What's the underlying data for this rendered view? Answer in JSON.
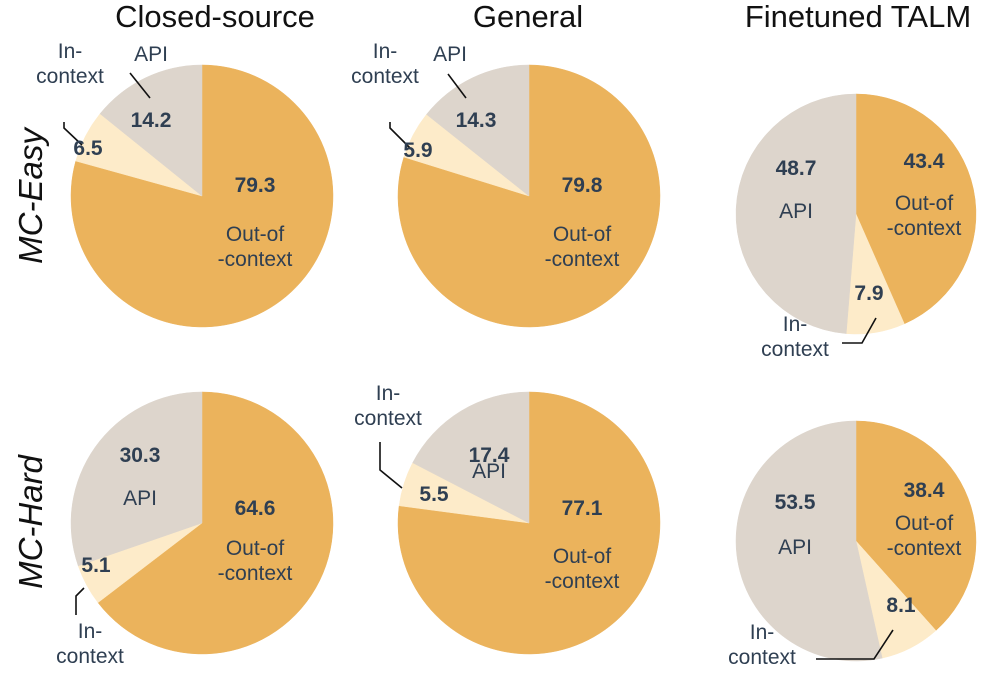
{
  "chart_data": {
    "type": "pie",
    "title": "",
    "column_titles": [
      "Closed-source",
      "General",
      "Finetuned TALM"
    ],
    "row_titles": [
      "MC-Easy",
      "MC-Hard"
    ],
    "categories": [
      "Out-of-context",
      "In-context",
      "API"
    ],
    "category_labels": {
      "out_of_context": [
        "Out-of",
        "-context"
      ],
      "in_context": [
        "In-",
        "context"
      ],
      "api": [
        "API"
      ]
    },
    "colors": {
      "out_of_context": "#ebb35c",
      "in_context": "#fdebc9",
      "api": "#ddd5cc"
    },
    "pies": [
      {
        "row": "MC-Easy",
        "column": "Closed-source",
        "values": [
          79.3,
          6.5,
          14.2
        ],
        "value_labels": [
          "79.3",
          "6.5",
          "14.2"
        ]
      },
      {
        "row": "MC-Easy",
        "column": "General",
        "values": [
          79.8,
          5.9,
          14.3
        ],
        "value_labels": [
          "79.8",
          "5.9",
          "14.3"
        ]
      },
      {
        "row": "MC-Easy",
        "column": "Finetuned TALM",
        "values": [
          43.4,
          7.9,
          48.7
        ],
        "value_labels": [
          "43.4",
          "7.9",
          "48.7"
        ]
      },
      {
        "row": "MC-Hard",
        "column": "Closed-source",
        "values": [
          64.6,
          5.1,
          30.3
        ],
        "value_labels": [
          "64.6",
          "5.1",
          "30.3"
        ]
      },
      {
        "row": "MC-Hard",
        "column": "General",
        "values": [
          77.1,
          5.5,
          17.4
        ],
        "value_labels": [
          "77.1",
          "5.5",
          "17.4"
        ]
      },
      {
        "row": "MC-Hard",
        "column": "Finetuned TALM",
        "values": [
          38.4,
          8.1,
          53.5
        ],
        "value_labels": [
          "38.4",
          "8.1",
          "53.5"
        ]
      }
    ]
  }
}
